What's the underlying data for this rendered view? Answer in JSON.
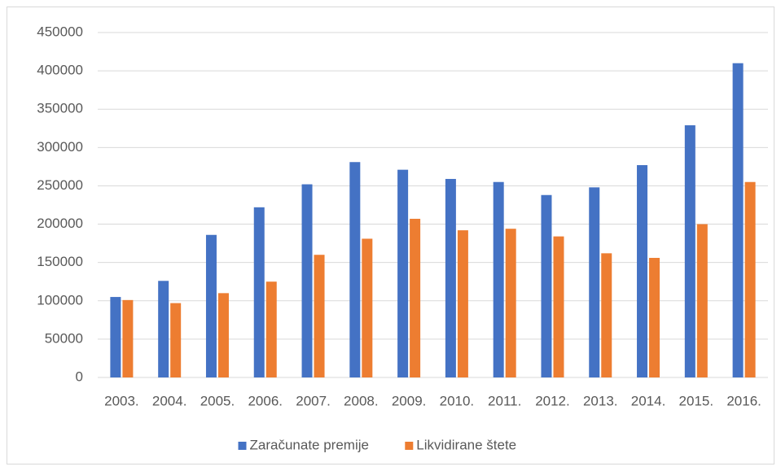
{
  "chart_data": {
    "type": "bar",
    "categories": [
      "2003.",
      "2004.",
      "2005.",
      "2006.",
      "2007.",
      "2008.",
      "2009.",
      "2010.",
      "2011.",
      "2012.",
      "2013.",
      "2014.",
      "2015.",
      "2016."
    ],
    "series": [
      {
        "name": "Zaračunate premije",
        "color": "#4472c4",
        "values": [
          105000,
          126000,
          186000,
          222000,
          252000,
          281000,
          271000,
          259000,
          255000,
          238000,
          248000,
          277000,
          329000,
          410000
        ]
      },
      {
        "name": "Likvidirane štete",
        "color": "#ed7d31",
        "values": [
          101000,
          97000,
          110000,
          125000,
          160000,
          181000,
          207000,
          192000,
          194000,
          184000,
          162000,
          156000,
          200000,
          255000
        ]
      }
    ],
    "ylim": [
      0,
      450000
    ],
    "yticks": [
      0,
      50000,
      100000,
      150000,
      200000,
      250000,
      300000,
      350000,
      400000,
      450000
    ],
    "grid": true,
    "legend": "bottom"
  }
}
